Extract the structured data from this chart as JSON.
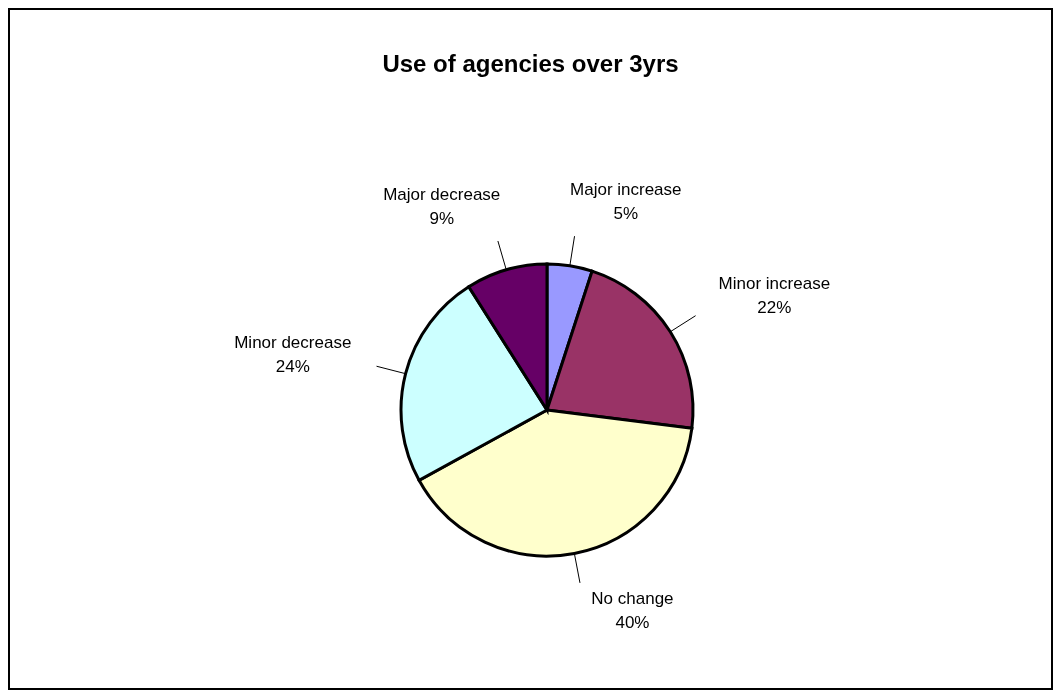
{
  "chart_data": {
    "type": "pie",
    "title": "Use of agencies over 3yrs",
    "categories": [
      "Major increase",
      "Minor increase",
      "No change",
      "Minor decrease",
      "Major decrease"
    ],
    "values": [
      5,
      22,
      40,
      24,
      9
    ],
    "value_labels": [
      "5%",
      "22%",
      "40%",
      "24%",
      "9%"
    ],
    "colors": [
      "#9999ff",
      "#993366",
      "#ffffcc",
      "#ccffff",
      "#660066"
    ],
    "legend": false
  }
}
